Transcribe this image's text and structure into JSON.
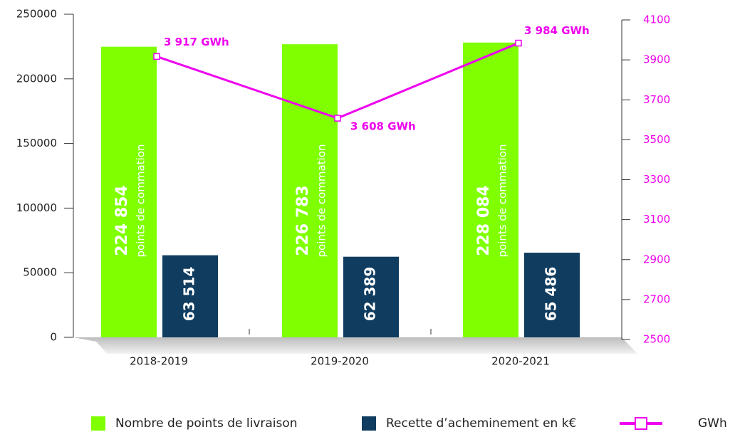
{
  "chart_data": {
    "type": "bar",
    "categories": [
      "2018-2019",
      "2019-2020",
      "2020-2021"
    ],
    "bar_annotation": "points de commation",
    "series": [
      {
        "name": "Nombre de points de livraison",
        "color": "#7fff00",
        "values": [
          224854,
          226783,
          228084
        ],
        "value_labels": [
          "224 854",
          "226 783",
          "228 084"
        ]
      },
      {
        "name": "Recette d’acheminement en k€",
        "color": "#0f3c5f",
        "values": [
          63514,
          62389,
          65486
        ],
        "value_labels": [
          "63 514",
          "62 389",
          "65 486"
        ]
      },
      {
        "name": "GWh",
        "color": "#ee00ee",
        "type": "line",
        "axis": "y2",
        "values": [
          3917,
          3608,
          3984
        ],
        "value_labels": [
          "3 917 GWh",
          "3 608 GWh",
          "3 984 GWh"
        ]
      }
    ],
    "ylim": [
      0,
      250000
    ],
    "yticks": [
      0,
      50000,
      100000,
      150000,
      200000,
      250000
    ],
    "y2lim": [
      2500,
      4100
    ],
    "y2ticks": [
      2500,
      2700,
      2900,
      3100,
      3300,
      3500,
      3700,
      3900,
      4100
    ],
    "grid": false,
    "legend": "bottom"
  }
}
